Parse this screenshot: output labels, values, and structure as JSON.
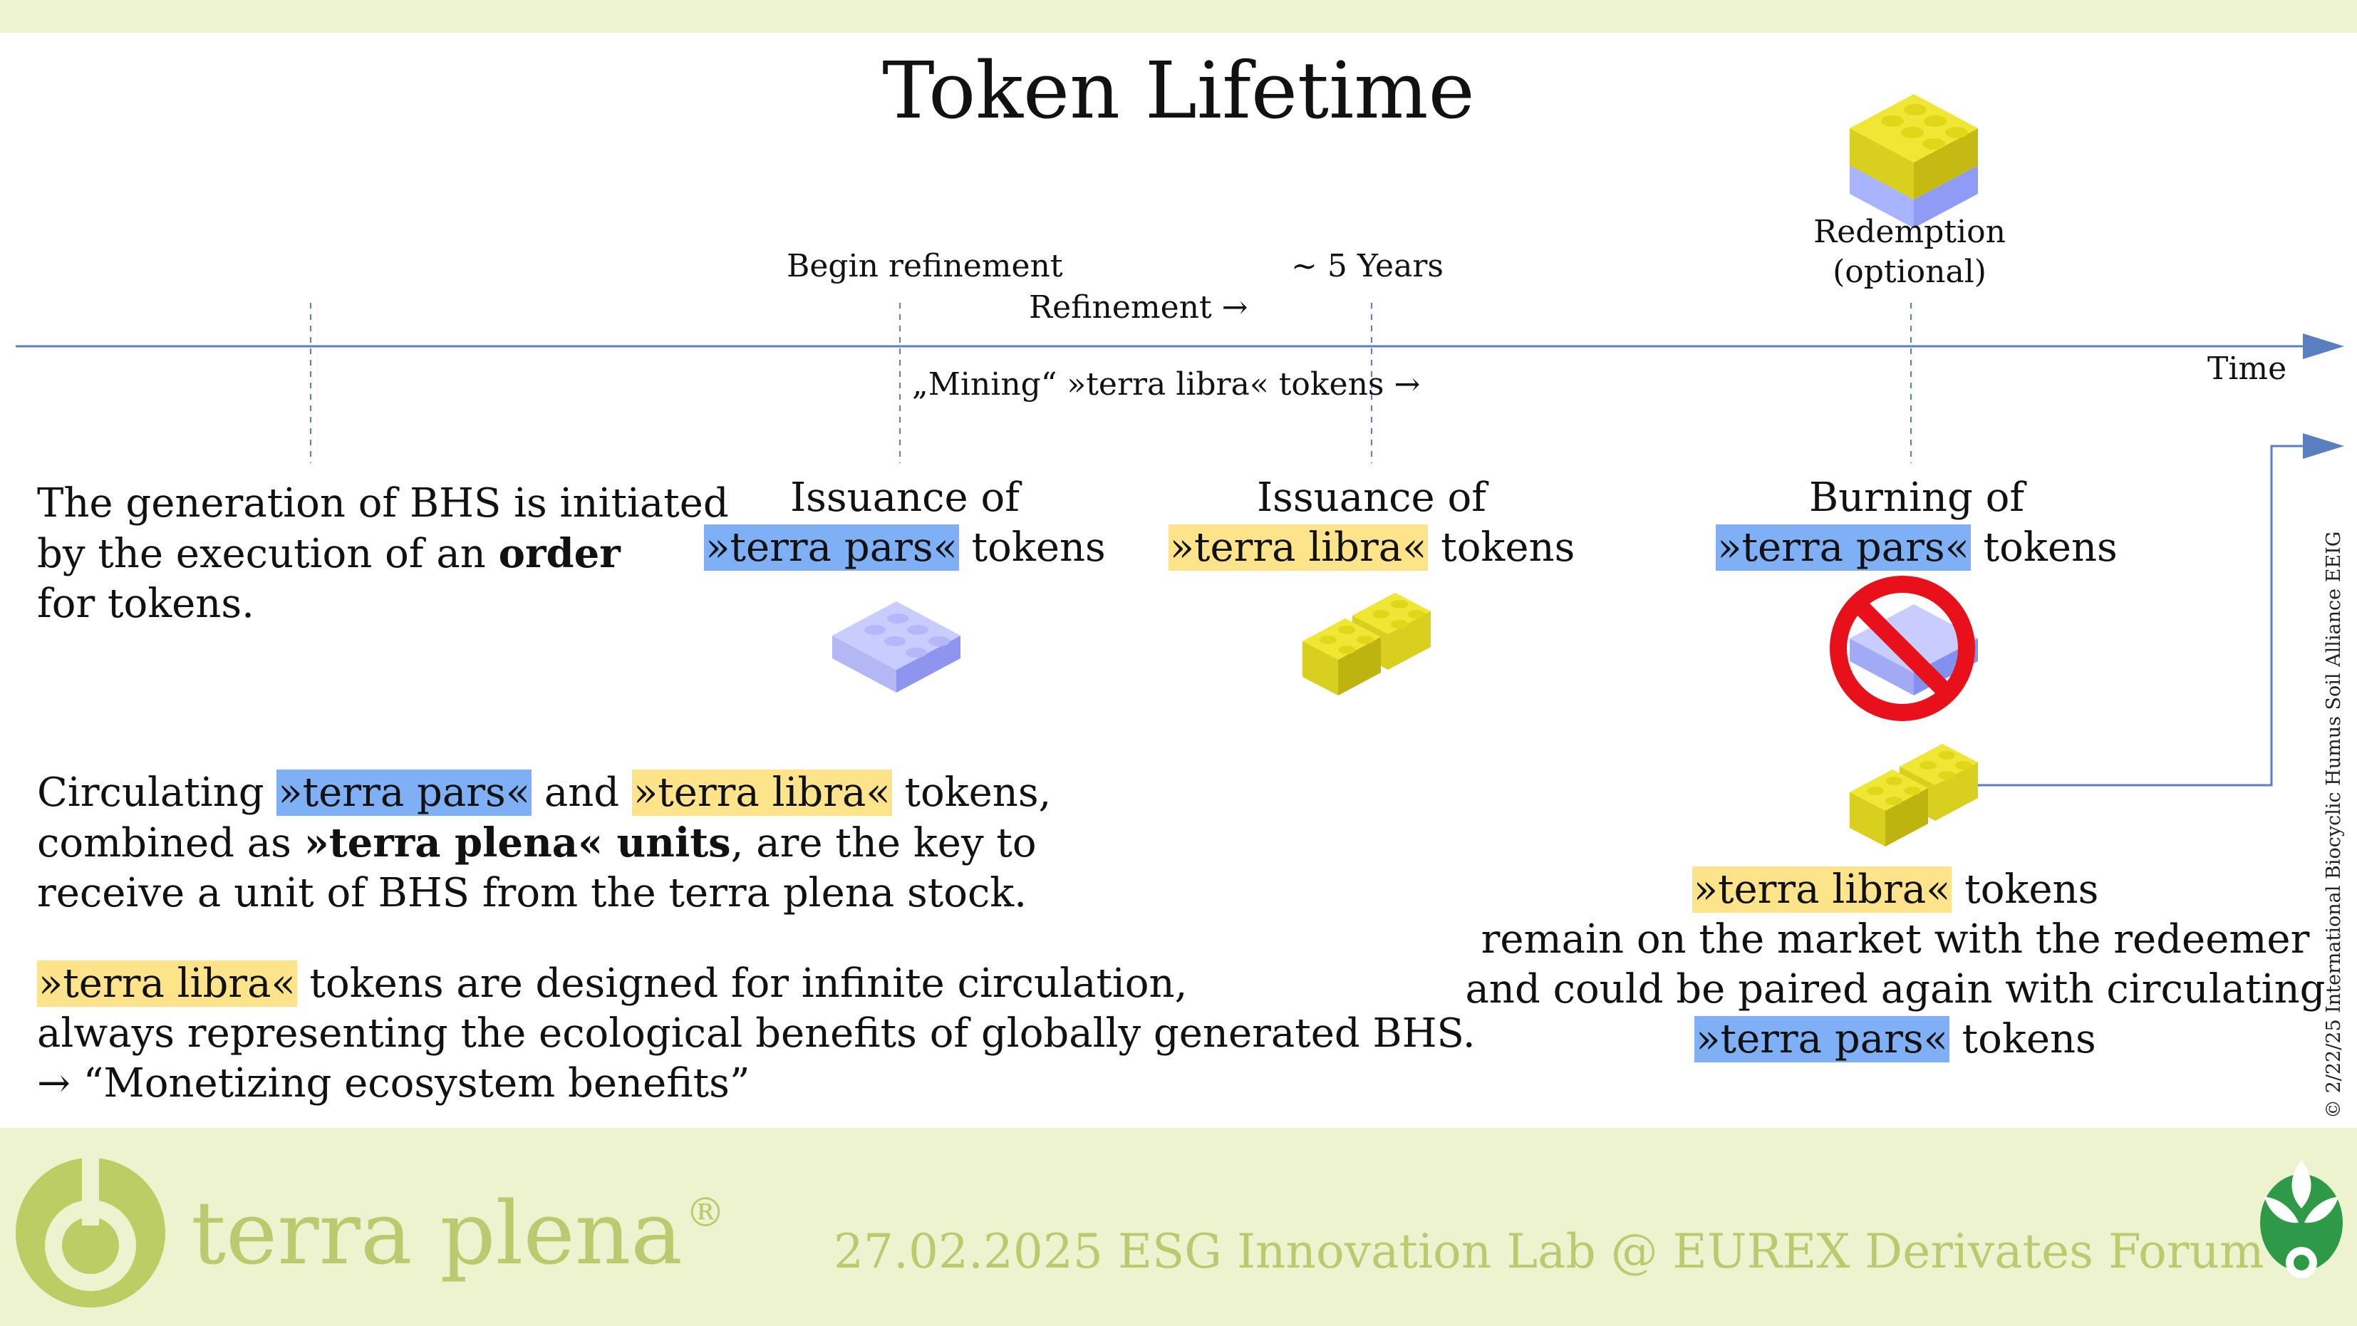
{
  "title": "Token Lifetime",
  "timeline": {
    "begin_refinement": "Begin refinement",
    "refinement": "Refinement →",
    "five_years": "~ 5 Years",
    "mining": "„Mining“ »terra libra« tokens →",
    "redemption_line1": "Redemption",
    "redemption_line2": "(optional)",
    "time_label": "Time"
  },
  "events": {
    "intro_line1": "The generation of BHS is initiated",
    "intro_line2_pre": "by the execution of an ",
    "intro_line2_bold": "order",
    "intro_line3": "for tokens.",
    "issuance_pars_line1": "Issuance of",
    "issuance_pars_token": "»terra pars«",
    "issuance_pars_suffix": " tokens",
    "issuance_libra_line1": "Issuance of",
    "issuance_libra_token": "»terra libra«",
    "issuance_libra_suffix": " tokens",
    "burning_line1": "Burning of",
    "burning_token": "»terra pars«",
    "burning_suffix": " tokens"
  },
  "circulating": {
    "line1_pre": "Circulating ",
    "line1_pars": "»terra pars«",
    "line1_and": " and ",
    "line1_libra": "»terra libra«",
    "line1_post": " tokens,",
    "line2_pre": "combined as ",
    "line2_bold": "»terra plena« units",
    "line2_post": ", are the key to",
    "line3": "receive a unit of BHS from the terra plena stock."
  },
  "infinite": {
    "line1_token": "»terra libra«",
    "line1_post": " tokens are designed for infinite circulation,",
    "line2": "always representing the ecological benefits of globally generated BHS.",
    "line3": "→ “Monetizing ecosystem benefits”"
  },
  "remain": {
    "line1_token": "»terra libra«",
    "line1_post": " tokens",
    "line2": "remain on the market with the redeemer",
    "line3": "and could be paired again with circulating",
    "line4_token": "»terra pars«",
    "line4_post": " tokens"
  },
  "copyright": "© 2/22/25 International Biocyclic Humus Soil Alliance EEIG",
  "footer": {
    "brand": "terra plena",
    "registered": "®",
    "event": "27.02.2025 ESG Innovation Lab @ EUREX Derivates Forum"
  },
  "colors": {
    "pars_highlight": "#7fb0f5",
    "libra_highlight": "#fde38a",
    "footer_band": "#eef3cf",
    "brand_green": "#b9cb6e",
    "timeline_blue": "#5a7fc0",
    "prohibit_red": "#e8101a"
  },
  "icons": {
    "pars_brick": "lavender-brick-icon",
    "libra_bricks": "yellow-bricks-icon",
    "stacked_bricks": "stacked-bricks-icon",
    "prohibit": "prohibited-icon",
    "logo": "terra-plena-logo",
    "plant": "plant-icon"
  }
}
